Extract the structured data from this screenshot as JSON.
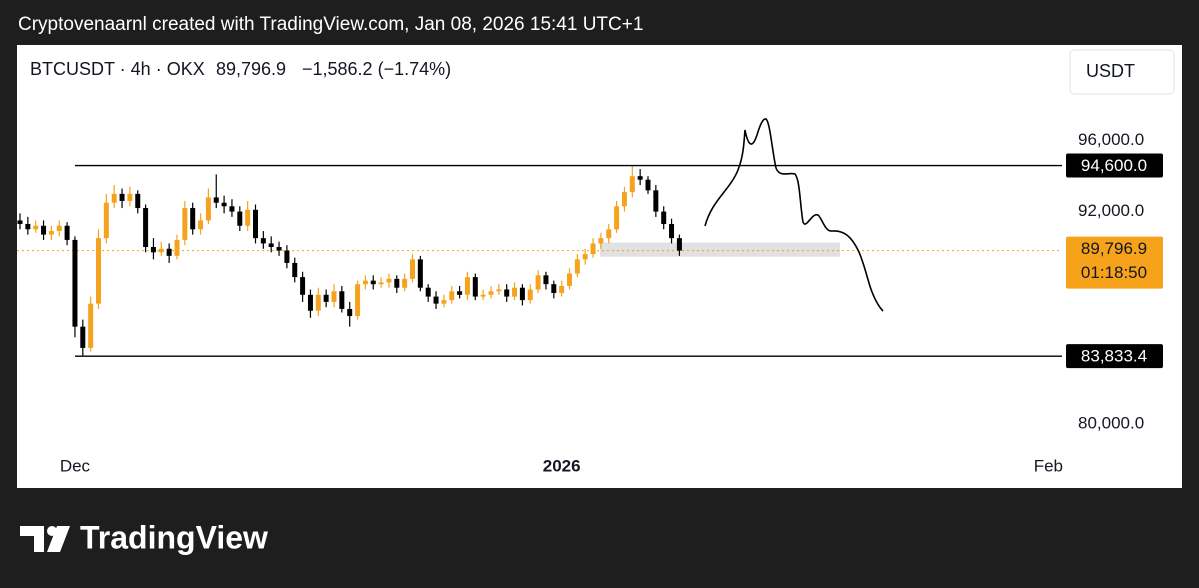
{
  "header": "Cryptovenaarnl created with TradingView.com, Jan 08, 2026 15:41 UTC+1",
  "logo": "TradingView",
  "chart_data": {
    "type": "candlestick",
    "symbol": "BTCUSDT · 4h · OKX",
    "change": "−1,586.2 (−1.74%)",
    "currency": "USDT",
    "up_color": "#f5a31f",
    "down_color": "#000000",
    "categories": [
      null,
      null,
      null,
      null,
      null,
      null,
      null,
      "Dec",
      null,
      null,
      null,
      null,
      null,
      null,
      null,
      null,
      null,
      null,
      null,
      null,
      null,
      null,
      null,
      null,
      null,
      null,
      null,
      null,
      null,
      null,
      null,
      null,
      null,
      null,
      null,
      null,
      null,
      null,
      null,
      null,
      null,
      null,
      null,
      null,
      null,
      null,
      null,
      null,
      null,
      null,
      null,
      null,
      null,
      null,
      null,
      null,
      null,
      null,
      null,
      null,
      null,
      null,
      null,
      null,
      null,
      null,
      null,
      null,
      null,
      "2026",
      null,
      null,
      null,
      null,
      null,
      null,
      null,
      null,
      null,
      null,
      null,
      null,
      null,
      null,
      null,
      null,
      null,
      null,
      null,
      null,
      null,
      null,
      null,
      null,
      null,
      null,
      null,
      null,
      null,
      null,
      null,
      null,
      null,
      null,
      null,
      null,
      null,
      null,
      null,
      null,
      null,
      null,
      null,
      null,
      null,
      null,
      null,
      null,
      null,
      null,
      null,
      null,
      null,
      null,
      null,
      null,
      null,
      null,
      null,
      null,
      null,
      "Feb"
    ],
    "open": [
      91500,
      91300,
      91000,
      91200,
      90700,
      90900,
      91200,
      90400,
      85500,
      84300,
      86800,
      90500,
      92500,
      93000,
      92600,
      93000,
      92200,
      90000,
      89700,
      89900,
      89500,
      90400,
      92200,
      91000,
      91500,
      92800,
      92500,
      92300,
      92000,
      91200,
      92100,
      90500,
      90200,
      90000,
      89800,
      89100,
      88300,
      87300,
      86400,
      87300,
      86900,
      87500,
      86500,
      86100,
      87900,
      88100,
      87900,
      88000,
      88200,
      87700,
      88200,
      89300,
      87700,
      87200,
      86800,
      87000,
      87500,
      87300,
      88300,
      87200,
      87300,
      87500,
      87600,
      87200,
      87700,
      87000,
      87600,
      88400,
      87900,
      87400,
      87800,
      88500,
      89300,
      89600,
      90200,
      90500,
      91000,
      92300,
      93100,
      94000,
      93800,
      93200,
      92000,
      91300,
      90500,
      null,
      null,
      null,
      null,
      null,
      null,
      null,
      null,
      null,
      null,
      null,
      null,
      null,
      null,
      null,
      null,
      null,
      null,
      null,
      null,
      null,
      null,
      null,
      null,
      null,
      null,
      null,
      null,
      null,
      null,
      null,
      null,
      null,
      null,
      null,
      null,
      null,
      null,
      null,
      null,
      null,
      null,
      null,
      null,
      null,
      null,
      null
    ],
    "high": [
      91900,
      91700,
      91500,
      91500,
      91200,
      91500,
      91400,
      90600,
      85900,
      87200,
      91000,
      93000,
      93500,
      93300,
      93400,
      93200,
      92400,
      90500,
      90300,
      90200,
      90700,
      92600,
      92500,
      91900,
      93300,
      94100,
      92900,
      92700,
      92300,
      92600,
      92400,
      90900,
      90600,
      90300,
      90100,
      89400,
      88600,
      87600,
      87700,
      87600,
      87900,
      87800,
      86900,
      88100,
      88400,
      88400,
      88300,
      88500,
      88400,
      88500,
      89600,
      89500,
      87900,
      87500,
      87300,
      87800,
      87800,
      88600,
      88500,
      87600,
      87800,
      87900,
      87900,
      88000,
      87900,
      87900,
      88700,
      88600,
      88100,
      88100,
      88800,
      89600,
      89900,
      90500,
      90800,
      91300,
      92600,
      93400,
      94600,
      94400,
      94000,
      93500,
      92300,
      91600,
      90700,
      null,
      null,
      null,
      null,
      null,
      null,
      null,
      null,
      null,
      null,
      null,
      null,
      null,
      null,
      null,
      null,
      null,
      null,
      null,
      null,
      null,
      null,
      null,
      null,
      null,
      null,
      null,
      null,
      null,
      null,
      null,
      null,
      null,
      null,
      null,
      null,
      null,
      null,
      null,
      null,
      null,
      null,
      null,
      null,
      null,
      null,
      null
    ],
    "low": [
      91000,
      90700,
      90800,
      90400,
      90400,
      90600,
      90100,
      84900,
      83833.4,
      84100,
      86500,
      90200,
      92200,
      92200,
      92300,
      91900,
      89700,
      89300,
      89500,
      89100,
      89300,
      90100,
      90700,
      90700,
      91300,
      92200,
      91900,
      91700,
      90900,
      90900,
      90200,
      89900,
      89700,
      89500,
      88800,
      88000,
      86900,
      86000,
      86100,
      86600,
      86600,
      86300,
      85500,
      85900,
      87600,
      87600,
      87700,
      87700,
      87400,
      87500,
      88000,
      87500,
      86900,
      86500,
      86600,
      86800,
      87100,
      87000,
      87000,
      87000,
      87100,
      87300,
      86900,
      87000,
      86700,
      86800,
      87400,
      87600,
      87100,
      87200,
      87600,
      88300,
      89000,
      89400,
      89900,
      90200,
      90800,
      92000,
      92800,
      93500,
      93000,
      91700,
      91000,
      90200,
      89500,
      null,
      null,
      null,
      null,
      null,
      null,
      null,
      null,
      null,
      null,
      null,
      null,
      null,
      null,
      null,
      null,
      null,
      null,
      null,
      null,
      null,
      null,
      null,
      null,
      null,
      null,
      null,
      null,
      null,
      null,
      null,
      null,
      null,
      null,
      null,
      null,
      null,
      null,
      null,
      null,
      null,
      null,
      null,
      null,
      null,
      null,
      null
    ],
    "close": [
      91300,
      91000,
      91200,
      90700,
      90900,
      91200,
      90400,
      85500,
      84300,
      86800,
      90500,
      92500,
      93000,
      92600,
      93000,
      92200,
      90000,
      89700,
      89900,
      89500,
      90400,
      92200,
      91000,
      91500,
      92800,
      92500,
      92300,
      92000,
      91200,
      92100,
      90500,
      90200,
      90000,
      89800,
      89100,
      88300,
      87300,
      86400,
      87300,
      86900,
      87500,
      86500,
      86100,
      87900,
      88100,
      87900,
      88000,
      88200,
      87700,
      88200,
      89300,
      87700,
      87200,
      86800,
      87000,
      87500,
      87300,
      88300,
      87200,
      87300,
      87500,
      87600,
      87200,
      87700,
      87000,
      87600,
      88400,
      87900,
      87400,
      87800,
      88500,
      89300,
      89600,
      90200,
      90500,
      91000,
      92300,
      93100,
      94000,
      93800,
      93200,
      92000,
      91300,
      90500,
      89796.9,
      null,
      null,
      null,
      null,
      null,
      null,
      null,
      null,
      null,
      null,
      null,
      null,
      null,
      null,
      null,
      null,
      null,
      null,
      null,
      null,
      null,
      null,
      null,
      null,
      null,
      null,
      null,
      null,
      null,
      null,
      null,
      null,
      null,
      null,
      null,
      null,
      null,
      null,
      null,
      null,
      null,
      null,
      null,
      null,
      null,
      null,
      null
    ],
    "ylim": [
      78535,
      101408
    ],
    "yticks": [
      {
        "value": 80000,
        "label": "80,000.0"
      },
      {
        "value": 92000,
        "label": "92,000.0"
      },
      {
        "value": 96000,
        "label": "96,000.0"
      }
    ],
    "levels": [
      {
        "value": 94600,
        "label": "94,600.0"
      },
      {
        "value": 83833.4,
        "label": "83,833.4"
      }
    ],
    "zone": [
      89450,
      90250
    ],
    "last_price": {
      "value": 89796.9,
      "label": "89,796.9"
    },
    "countdown": "01:18:50"
  }
}
